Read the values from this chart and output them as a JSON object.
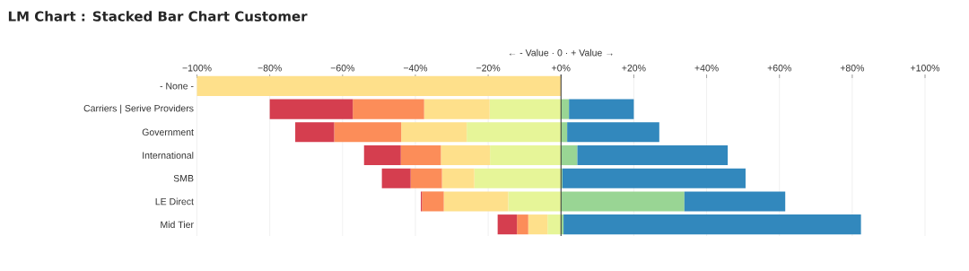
{
  "chart_data": {
    "type": "bar",
    "title": "LM Chart : Stacked Bar Chart Customer",
    "xlabel": "← - Value · 0 · + Value →",
    "orientation": "horizontal",
    "stacked": true,
    "categories": [
      "- None -",
      "Carriers | Serive Providers",
      "Government",
      "International",
      "SMB",
      "LE Direct",
      "Mid Tier"
    ],
    "series": [
      {
        "color": "#e6f598",
        "values": [
          0,
          -19.6,
          -25.9,
          -19.5,
          -23.8,
          -14.5,
          -3.7
        ]
      },
      {
        "color": "#fee08b",
        "values": [
          -100,
          -18.0,
          -18.0,
          -13.5,
          -8.9,
          -17.7,
          -5.3
        ]
      },
      {
        "color": "#fc8d59",
        "values": [
          0,
          -19.6,
          -18.4,
          -11.0,
          -8.6,
          -6.0,
          -3.1
        ]
      },
      {
        "color": "#d53e4f",
        "values": [
          0,
          -22.8,
          -10.7,
          -10.1,
          -7.9,
          -0.3,
          -5.3
        ]
      },
      {
        "color": "#99d594",
        "values": [
          0,
          2.2,
          1.7,
          4.5,
          0.4,
          33.9,
          0.7
        ]
      },
      {
        "color": "#3288bd",
        "values": [
          0,
          17.8,
          25.3,
          41.3,
          50.3,
          27.7,
          81.7
        ]
      }
    ],
    "xlim": [
      -100,
      100
    ],
    "xticks": [
      {
        "value": -100,
        "label": "−100%"
      },
      {
        "value": -80,
        "label": "−80%"
      },
      {
        "value": -60,
        "label": "−60%"
      },
      {
        "value": -40,
        "label": "−40%"
      },
      {
        "value": -20,
        "label": "−20%"
      },
      {
        "value": 0,
        "label": "+0%"
      },
      {
        "value": 20,
        "label": "+20%"
      },
      {
        "value": 40,
        "label": "+40%"
      },
      {
        "value": 60,
        "label": "+60%"
      },
      {
        "value": 80,
        "label": "+80%"
      },
      {
        "value": 100,
        "label": "+100%"
      }
    ],
    "grid": "x",
    "ref_lines": [
      {
        "axis": "x",
        "value": 0,
        "color": "#333333"
      }
    ]
  }
}
